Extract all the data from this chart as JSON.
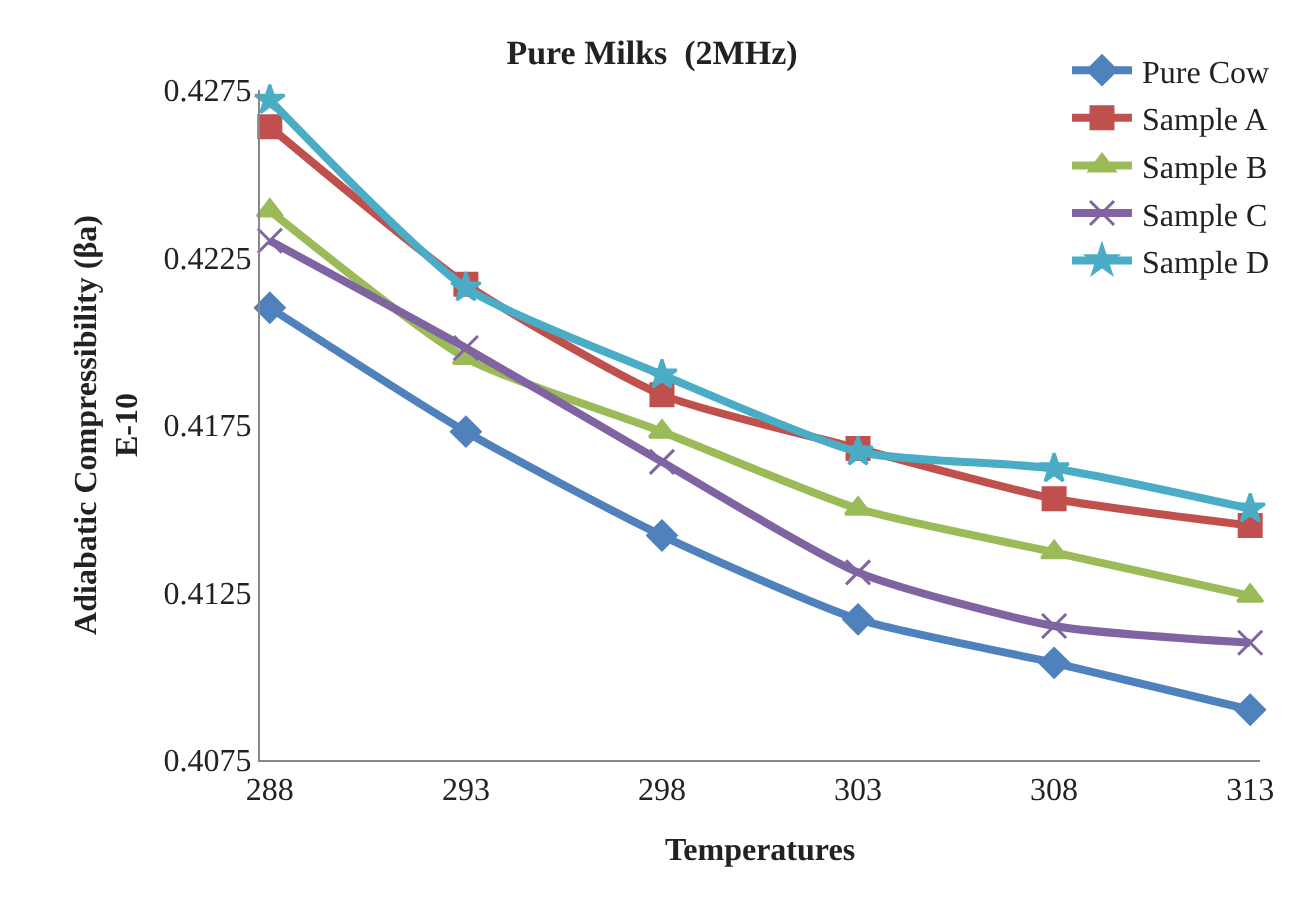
{
  "chart_data": {
    "type": "line",
    "title": "Pure Milks  (2MHz)",
    "xlabel": "Temperatures",
    "ylabel": "Adiabatic Compressibility (βa)\nE-10",
    "categories": [
      "288",
      "293",
      "298",
      "303",
      "308",
      "313"
    ],
    "series": [
      {
        "name": "Pure Cow",
        "color": "#4f81bd",
        "marker": "diamond",
        "values": [
          0.421,
          0.4173,
          0.4142,
          0.4117,
          0.4104,
          0.409
        ]
      },
      {
        "name": "Sample A",
        "color": "#c0504d",
        "marker": "square",
        "values": [
          0.4264,
          0.4217,
          0.4184,
          0.4168,
          0.4153,
          0.4145
        ]
      },
      {
        "name": "Sample B",
        "color": "#9bbb59",
        "marker": "triangle",
        "values": [
          0.4239,
          0.4195,
          0.4173,
          0.415,
          0.4137,
          0.4124
        ]
      },
      {
        "name": "Sample C",
        "color": "#8064a2",
        "marker": "cross",
        "values": [
          0.423,
          0.4198,
          0.4164,
          0.4131,
          0.4115,
          0.411
        ]
      },
      {
        "name": "Sample D",
        "color": "#4bacc6",
        "marker": "star",
        "values": [
          0.4272,
          0.4216,
          0.419,
          0.4167,
          0.4162,
          0.415
        ]
      }
    ],
    "ylim": [
      0.4075,
      0.4275
    ],
    "yticks": [
      0.4075,
      0.4125,
      0.4175,
      0.4225,
      0.4275
    ],
    "grid": false,
    "legend": "top right",
    "line_style": "solid"
  }
}
